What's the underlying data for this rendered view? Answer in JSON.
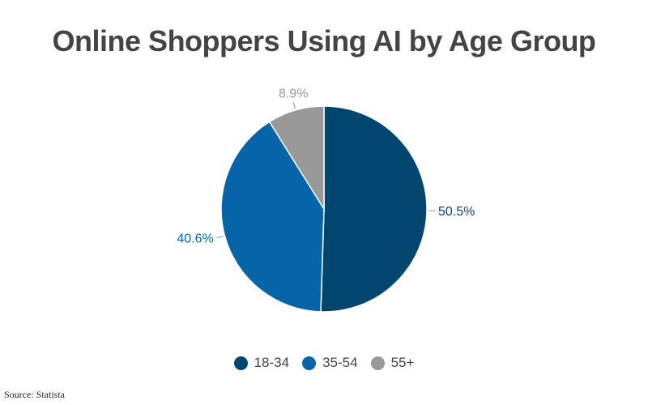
{
  "title": "Online Shoppers Using AI by Age Group",
  "source": "Source: Statista",
  "chart_data": {
    "type": "pie",
    "title": "Online Shoppers Using AI by Age Group",
    "categories": [
      "18-34",
      "35-54",
      "55+"
    ],
    "values": [
      50.5,
      40.6,
      8.9
    ],
    "labels": [
      "50.5%",
      "40.6%",
      "8.9%"
    ],
    "colors": [
      "#00466f",
      "#0565a8",
      "#999999"
    ],
    "start_angle": "12 o'clock",
    "direction": "clockwise",
    "legend_position": "bottom",
    "source": "Source: Statista"
  },
  "legend": {
    "items": [
      {
        "label": "18-34",
        "color": "#00466f"
      },
      {
        "label": "35-54",
        "color": "#0565a8"
      },
      {
        "label": "55+",
        "color": "#999999"
      }
    ]
  }
}
